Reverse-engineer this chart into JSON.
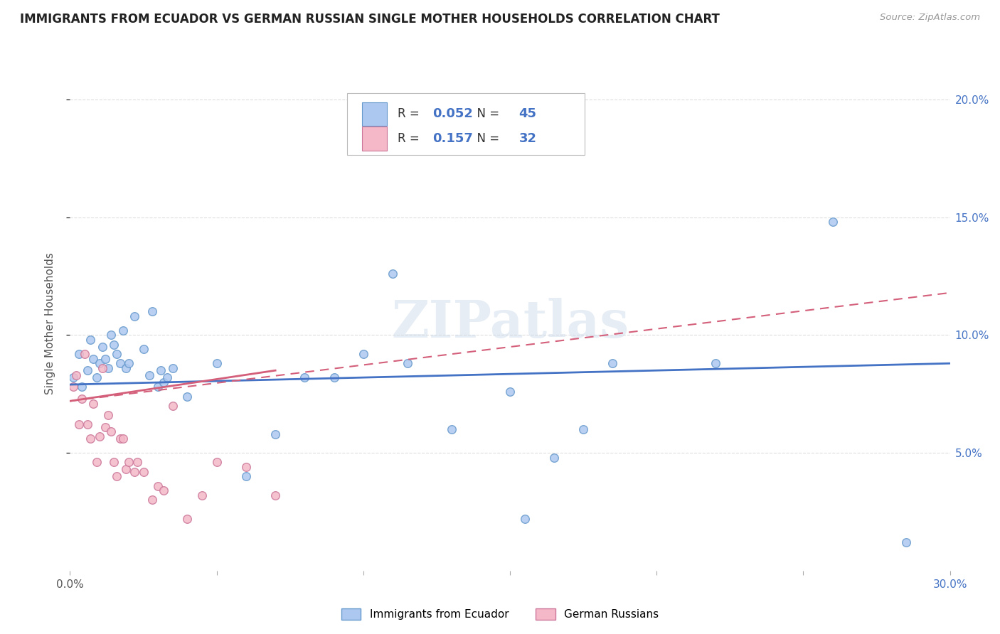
{
  "title": "IMMIGRANTS FROM ECUADOR VS GERMAN RUSSIAN SINGLE MOTHER HOUSEHOLDS CORRELATION CHART",
  "source": "Source: ZipAtlas.com",
  "ylabel": "Single Mother Households",
  "xlim": [
    0.0,
    0.3
  ],
  "ylim": [
    0.0,
    0.21
  ],
  "yticks": [
    0.05,
    0.1,
    0.15,
    0.2
  ],
  "ytick_labels": [
    "5.0%",
    "10.0%",
    "15.0%",
    "20.0%"
  ],
  "ecuador_R": "0.052",
  "ecuador_N": "45",
  "german_russian_R": "0.157",
  "german_russian_N": "32",
  "ecuador_color": "#adc8f0",
  "ecuador_edge_color": "#6699cc",
  "ecuador_line_color": "#4472c4",
  "german_russian_color": "#f4b8c8",
  "german_russian_edge_color": "#cc7799",
  "german_russian_line_color": "#d45f7a",
  "watermark": "ZIPatlas",
  "ecuador_points_x": [
    0.001,
    0.003,
    0.004,
    0.006,
    0.007,
    0.008,
    0.009,
    0.01,
    0.011,
    0.012,
    0.013,
    0.014,
    0.015,
    0.016,
    0.017,
    0.018,
    0.019,
    0.02,
    0.022,
    0.025,
    0.027,
    0.028,
    0.03,
    0.031,
    0.032,
    0.033,
    0.035,
    0.04,
    0.05,
    0.06,
    0.07,
    0.08,
    0.09,
    0.1,
    0.11,
    0.115,
    0.13,
    0.15,
    0.155,
    0.165,
    0.175,
    0.185,
    0.22,
    0.26,
    0.285
  ],
  "ecuador_points_y": [
    0.082,
    0.092,
    0.078,
    0.085,
    0.098,
    0.09,
    0.082,
    0.088,
    0.095,
    0.09,
    0.086,
    0.1,
    0.096,
    0.092,
    0.088,
    0.102,
    0.086,
    0.088,
    0.108,
    0.094,
    0.083,
    0.11,
    0.078,
    0.085,
    0.08,
    0.082,
    0.086,
    0.074,
    0.088,
    0.04,
    0.058,
    0.082,
    0.082,
    0.092,
    0.126,
    0.088,
    0.06,
    0.076,
    0.022,
    0.048,
    0.06,
    0.088,
    0.088,
    0.148,
    0.012
  ],
  "german_russian_points_x": [
    0.001,
    0.002,
    0.003,
    0.004,
    0.005,
    0.006,
    0.007,
    0.008,
    0.009,
    0.01,
    0.011,
    0.012,
    0.013,
    0.014,
    0.015,
    0.016,
    0.017,
    0.018,
    0.019,
    0.02,
    0.022,
    0.023,
    0.025,
    0.028,
    0.03,
    0.032,
    0.035,
    0.04,
    0.045,
    0.05,
    0.06,
    0.07
  ],
  "german_russian_points_y": [
    0.078,
    0.083,
    0.062,
    0.073,
    0.092,
    0.062,
    0.056,
    0.071,
    0.046,
    0.057,
    0.086,
    0.061,
    0.066,
    0.059,
    0.046,
    0.04,
    0.056,
    0.056,
    0.043,
    0.046,
    0.042,
    0.046,
    0.042,
    0.03,
    0.036,
    0.034,
    0.07,
    0.022,
    0.032,
    0.046,
    0.044,
    0.032
  ],
  "grid_color": "#dddddd",
  "background_color": "#ffffff",
  "title_color": "#222222",
  "axis_label_color": "#555555",
  "blue_tick_color": "#4472c4",
  "legend_box_color": "#ffffff",
  "legend_border_color": "#cccccc"
}
